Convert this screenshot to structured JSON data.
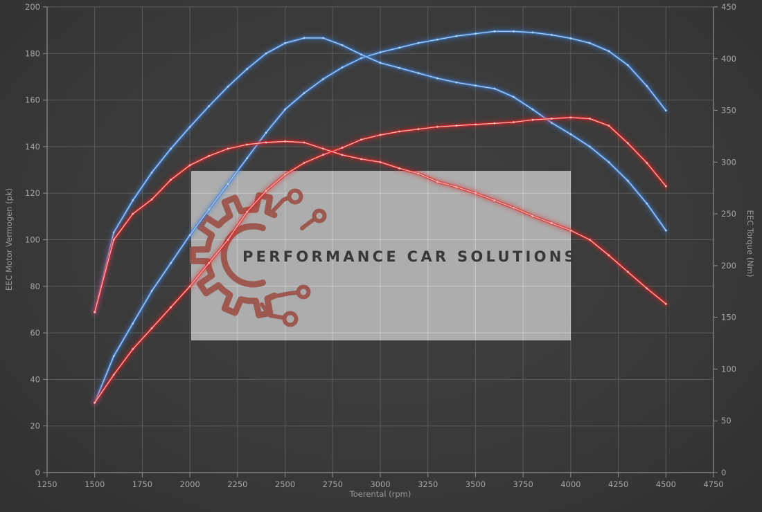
{
  "watermark": {
    "brand_text": "PERFORMANCE CAR SOLUTIONS",
    "logo_icon": "gear-circuit"
  },
  "colors": {
    "background": "#3a3a3a",
    "grid": "#5c5c5c",
    "grid_on_watermark": "rgba(255,255,255,0.30)",
    "axis": "#8f8f8f",
    "tick_label": "#a6a6a6",
    "axis_title": "#9a9a9a",
    "blue": "#3d7ed2",
    "blue_core": "#b8d6f4",
    "red": "#e02020",
    "red_core": "#ffc4c4",
    "watermark_box": "rgba(198,198,198,0.82)",
    "logo": "#9c4f46",
    "brand_text_color": "#383838"
  },
  "chart_data": {
    "type": "line",
    "title": "",
    "xlabel": "Toerental (rpm)",
    "ylabel_left": "EEC Motor Vermogen (pk)",
    "ylabel_right": "EEC Torque (Nm)",
    "xlim": [
      1250,
      4750
    ],
    "ylim_left": [
      0,
      200
    ],
    "ylim_right": [
      0,
      450
    ],
    "grid": true,
    "legend": false,
    "x_ticks": [
      1250,
      1500,
      1750,
      2000,
      2250,
      2500,
      2750,
      3000,
      3250,
      3500,
      3750,
      4000,
      4250,
      4500,
      4750
    ],
    "y_ticks_left": [
      0,
      20,
      40,
      60,
      80,
      100,
      120,
      140,
      160,
      180,
      200
    ],
    "y_ticks_right": [
      0,
      50,
      100,
      150,
      200,
      250,
      300,
      350,
      400,
      450
    ],
    "x": [
      1500,
      1600,
      1700,
      1800,
      1900,
      2000,
      2100,
      2200,
      2300,
      2400,
      2500,
      2600,
      2700,
      2800,
      2900,
      3000,
      3100,
      3200,
      3300,
      3400,
      3500,
      3600,
      3700,
      3800,
      3900,
      4000,
      4100,
      4200,
      4300,
      4400,
      4500
    ],
    "series": [
      {
        "name": "vermogen-blauw (pk)",
        "axis": "left",
        "color_key": "blue",
        "values": [
          30,
          50,
          64,
          78,
          90,
          102,
          113,
          124,
          135,
          146,
          156,
          163,
          169,
          174,
          178,
          180.5,
          182.5,
          184.5,
          186,
          187.5,
          188.5,
          189.5,
          189.5,
          189,
          188,
          186.5,
          184.5,
          181,
          175,
          166,
          155.5
        ]
      },
      {
        "name": "koppel-blauw (Nm)",
        "axis": "right",
        "color_key": "blue",
        "values": [
          155,
          232,
          263,
          290,
          313,
          334,
          354,
          373,
          390,
          405,
          415,
          420,
          420,
          413,
          404,
          396,
          391,
          386,
          381,
          377,
          374,
          371,
          363,
          351,
          338,
          327,
          315,
          300,
          282,
          260,
          234
        ]
      },
      {
        "name": "vermogen-rood (pk)",
        "axis": "left",
        "color_key": "red",
        "values": [
          30,
          42,
          53,
          62,
          71,
          80,
          90,
          100,
          112,
          121,
          128,
          133,
          136.5,
          139.5,
          143,
          145,
          146.5,
          147.5,
          148.5,
          149,
          149.5,
          150,
          150.5,
          151.5,
          152,
          152.5,
          152,
          149,
          141.5,
          133,
          123
        ]
      },
      {
        "name": "koppel-rood (Nm)",
        "axis": "right",
        "color_key": "red",
        "values": [
          155,
          225,
          250,
          264,
          283,
          297,
          306,
          313,
          317,
          319,
          320,
          319,
          313,
          307,
          303,
          300,
          294,
          289,
          281,
          276,
          270,
          263,
          256,
          248,
          241,
          234,
          225,
          210,
          194,
          178,
          163
        ]
      }
    ]
  }
}
